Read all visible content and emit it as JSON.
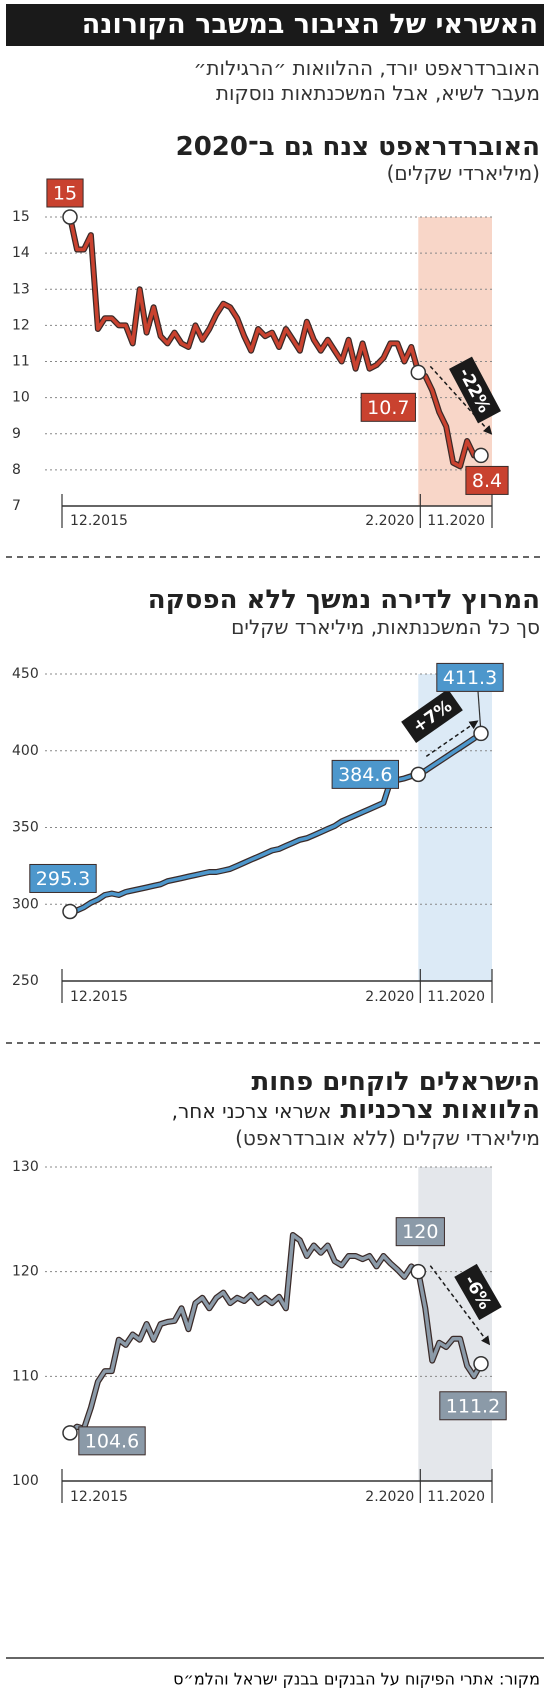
{
  "header": {
    "title": "האשראי של הציבור במשבר הקורונה",
    "subtitle": [
      "האוברדראפט יורד, ההלוואות ״הרגילות״",
      "מעבר לשיא, אבל המשכנתאות נוסקות"
    ]
  },
  "source": "מקור: אתרי הפיקוח על הבנקים בבנק ישראל והלמ״ס",
  "chart_data": [
    {
      "type": "line",
      "title": "האוברדראפט צנח גם ב־2020",
      "subtitle": "(מיליארדי שקלים)",
      "categories": [
        "12.2015",
        null,
        null,
        null,
        null,
        null,
        null,
        null,
        null,
        null,
        null,
        null,
        null,
        null,
        null,
        null,
        null,
        null,
        null,
        null,
        null,
        null,
        null,
        null,
        null,
        null,
        null,
        null,
        null,
        null,
        null,
        null,
        null,
        null,
        null,
        null,
        null,
        null,
        null,
        null,
        null,
        null,
        null,
        null,
        null,
        null,
        null,
        null,
        null,
        null,
        "2.2020",
        null,
        null,
        null,
        null,
        null,
        null,
        null,
        null,
        "11.2020"
      ],
      "values": [
        15,
        14.1,
        14.1,
        14.5,
        11.9,
        12.2,
        12.2,
        12.0,
        12.0,
        11.5,
        13.0,
        11.8,
        12.5,
        11.7,
        11.5,
        11.8,
        11.5,
        11.4,
        12.0,
        11.6,
        11.9,
        12.3,
        12.6,
        12.5,
        12.2,
        11.7,
        11.3,
        11.9,
        11.7,
        11.8,
        11.4,
        11.9,
        11.6,
        11.3,
        12.1,
        11.6,
        11.3,
        11.6,
        11.3,
        11.0,
        11.6,
        10.8,
        11.5,
        10.8,
        10.9,
        11.1,
        11.5,
        11.5,
        11.0,
        11.4,
        10.7,
        10.6,
        10.2,
        9.6,
        9.2,
        8.2,
        8.1,
        8.8,
        8.4,
        8.4
      ],
      "color": "#c9422f",
      "shade_color": "#f8d6c8",
      "label_color": "#c9422f",
      "labeled_points": [
        0,
        50,
        59
      ],
      "shaded_from": 50,
      "annotation": "-22%",
      "ylim": [
        7,
        15
      ],
      "yticks": [
        7,
        8,
        9,
        10,
        11,
        12,
        13,
        14,
        15
      ],
      "grid": true
    },
    {
      "type": "line",
      "title": "המרוץ לדירה נמשך ללא הפסקה",
      "subtitle": "סך כל המשכנתאות, מיליארד שקלים",
      "categories": [
        "12.2015",
        null,
        null,
        null,
        null,
        null,
        null,
        null,
        null,
        null,
        null,
        null,
        null,
        null,
        null,
        null,
        null,
        null,
        null,
        null,
        null,
        null,
        null,
        null,
        null,
        null,
        null,
        null,
        null,
        null,
        null,
        null,
        null,
        null,
        null,
        null,
        null,
        null,
        null,
        null,
        null,
        null,
        null,
        null,
        null,
        null,
        null,
        null,
        null,
        null,
        "2.2020",
        null,
        null,
        null,
        null,
        null,
        null,
        null,
        null,
        "11.2020"
      ],
      "values": [
        295.3,
        296,
        298,
        301,
        303,
        306,
        307,
        306,
        308,
        309,
        310,
        311,
        312,
        313,
        315,
        316,
        317,
        318,
        319,
        320,
        321,
        321,
        322,
        323,
        325,
        327,
        329,
        331,
        333,
        335,
        336,
        338,
        340,
        342,
        343,
        345,
        347,
        349,
        351,
        354,
        356,
        358,
        360,
        362,
        364,
        366,
        380,
        381,
        382,
        383.5,
        384.6,
        387,
        390,
        393,
        396,
        399,
        402,
        405,
        408,
        411.3
      ],
      "color": "#4d97cc",
      "shade_color": "#dceaf6",
      "label_color": "#4d97cc",
      "labeled_points": [
        0,
        50,
        59
      ],
      "shaded_from": 50,
      "annotation": "+7%",
      "ylim": [
        250,
        450
      ],
      "yticks": [
        250,
        300,
        350,
        400,
        450
      ],
      "grid": true
    },
    {
      "type": "line",
      "title": [
        "הישראלים לוקחים פחות",
        "הלוואות צרכניות"
      ],
      "subtitle": [
        "אשראי צרכני אחר,",
        "מיליארדי שקלים (ללא אוברדראפט)"
      ],
      "categories": [
        "12.2015",
        null,
        null,
        null,
        null,
        null,
        null,
        null,
        null,
        null,
        null,
        null,
        null,
        null,
        null,
        null,
        null,
        null,
        null,
        null,
        null,
        null,
        null,
        null,
        null,
        null,
        null,
        null,
        null,
        null,
        null,
        null,
        null,
        null,
        null,
        null,
        null,
        null,
        null,
        null,
        null,
        null,
        null,
        null,
        null,
        null,
        null,
        null,
        null,
        null,
        "2.2020",
        null,
        null,
        null,
        null,
        null,
        null,
        null,
        null,
        "11.2020"
      ],
      "values": [
        104.6,
        105.2,
        105.0,
        107,
        109.5,
        110.5,
        110.5,
        113.5,
        113,
        114,
        113.5,
        115,
        113.5,
        115,
        115.2,
        115.3,
        116.5,
        114.5,
        117,
        117.5,
        116.5,
        117.5,
        118,
        117,
        117.5,
        117.2,
        117.8,
        117,
        117.5,
        117,
        117.6,
        116.5,
        123.5,
        123,
        121.5,
        122.5,
        121.8,
        122.5,
        121,
        120.6,
        121.5,
        121.5,
        121.2,
        121.5,
        120.5,
        121.5,
        120.8,
        120.2,
        119.5,
        120.5,
        120,
        116.5,
        111.5,
        113.2,
        112.8,
        113.6,
        113.6,
        111,
        110,
        111.2
      ],
      "color": "#8b9aa8",
      "shade_color": "#e4e7eb",
      "label_color": "#8b9aa8",
      "labeled_points": [
        0,
        50,
        59
      ],
      "shaded_from": 50,
      "annotation": "-6%",
      "ylim": [
        100,
        130
      ],
      "yticks": [
        100,
        110,
        120,
        130
      ],
      "grid": true
    }
  ]
}
